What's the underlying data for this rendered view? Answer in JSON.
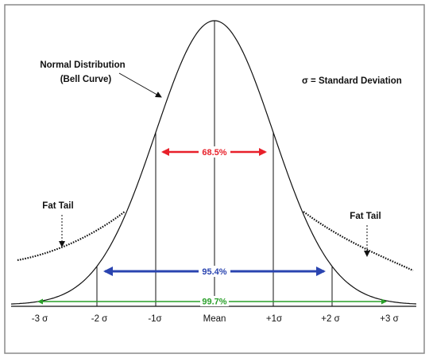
{
  "title_label": {
    "line1": "Normal Distribution",
    "line2": "(Bell Curve)"
  },
  "legend": "σ = Standard Deviation",
  "fat_tail_left": "Fat Tail",
  "fat_tail_right": "Fat Tail",
  "ranges": {
    "one_sigma": "68.5%",
    "two_sigma": "95.4%",
    "three_sigma": "99.7%"
  },
  "axis_ticks": [
    "-3 σ",
    "-2 σ",
    "-1σ",
    "Mean",
    "+1σ",
    "+2 σ",
    "+3 σ"
  ],
  "colors": {
    "one_sigma": "#e8202a",
    "two_sigma": "#2a44b0",
    "three_sigma": "#2aa02a",
    "ink": "#111111",
    "frame": "#8a8a8a"
  }
}
